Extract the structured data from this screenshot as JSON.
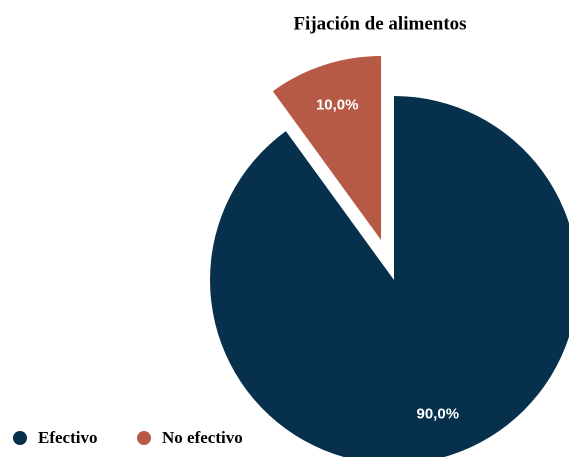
{
  "chart_data": {
    "type": "pie",
    "title": "Fijación de alimentos",
    "categories": [
      "Efectivo",
      "No efectivo"
    ],
    "values": [
      90,
      10
    ],
    "value_labels": [
      "90,0%",
      "10,0%"
    ],
    "colors": [
      "#06304b",
      "#b65a45"
    ]
  }
}
